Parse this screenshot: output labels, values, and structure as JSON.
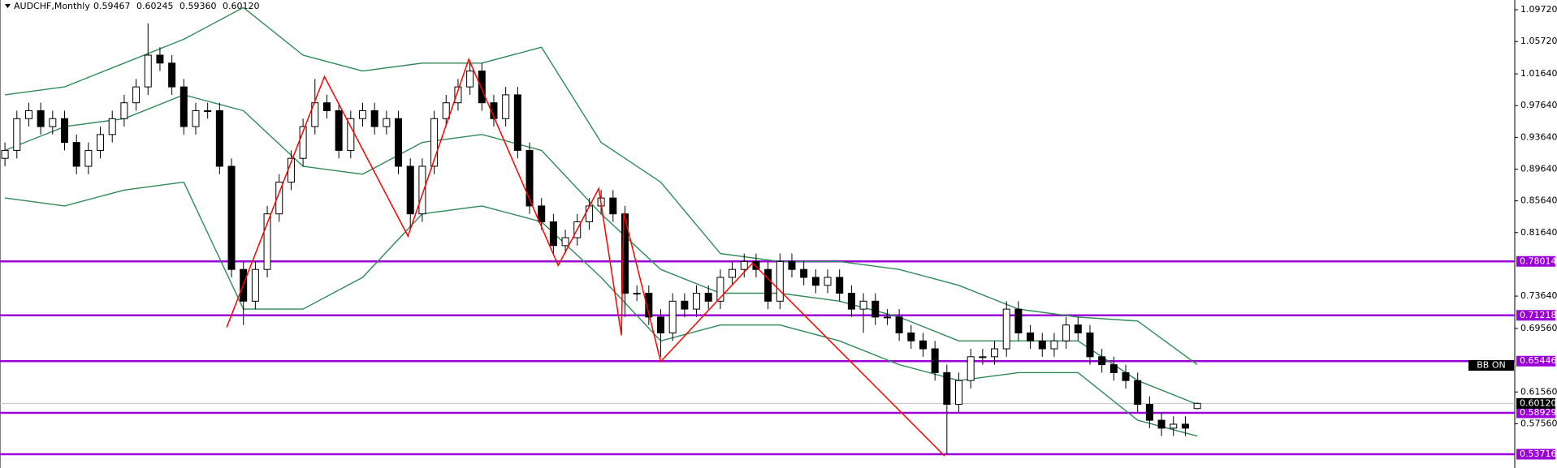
{
  "chart_data": {
    "type": "candlestick",
    "title": "AUDCHF,Monthly",
    "quote": [
      "0.59467",
      "0.60245",
      "0.59360",
      "0.60120"
    ],
    "indicator_label": "BB ON",
    "ylim": [
      0.5198,
      1.1095
    ],
    "yticks": [
      {
        "value": 1.0972,
        "label": "1.09720"
      },
      {
        "value": 1.0572,
        "label": "1.05720"
      },
      {
        "value": 1.0164,
        "label": "1.01640"
      },
      {
        "value": 0.9764,
        "label": "0.97640"
      },
      {
        "value": 0.9364,
        "label": "0.93640"
      },
      {
        "value": 0.8964,
        "label": "0.89640"
      },
      {
        "value": 0.8564,
        "label": "0.85640"
      },
      {
        "value": 0.8164,
        "label": "0.81640"
      },
      {
        "value": 0.7364,
        "label": "0.73640"
      },
      {
        "value": 0.6956,
        "label": "0.69560"
      },
      {
        "value": 0.6156,
        "label": "0.61560"
      },
      {
        "value": 0.5756,
        "label": "0.57560"
      }
    ],
    "levels": {
      "color": "#9b00d9",
      "values": [
        0.78014,
        0.71218,
        0.65446,
        0.58929,
        0.53716
      ]
    },
    "price_line": {
      "value": 0.6012,
      "label": "0.60120",
      "color": "#c0c0c0"
    },
    "candle_colors": {
      "up": "#ffffff",
      "down": "#000000",
      "outline": "#000000"
    },
    "open": [
      0.91,
      0.92,
      0.96,
      0.97,
      0.95,
      0.96,
      0.93,
      0.9,
      0.92,
      0.94,
      0.96,
      0.98,
      1.0,
      1.04,
      1.03,
      1.0,
      0.95,
      0.97,
      0.97,
      0.9,
      0.77,
      0.73,
      0.77,
      0.84,
      0.88,
      0.91,
      0.95,
      0.98,
      0.97,
      0.92,
      0.96,
      0.97,
      0.95,
      0.96,
      0.9,
      0.84,
      0.9,
      0.96,
      0.98,
      1.0,
      1.02,
      0.98,
      0.96,
      0.99,
      0.92,
      0.85,
      0.83,
      0.8,
      0.81,
      0.83,
      0.85,
      0.86,
      0.84,
      0.74,
      0.74,
      0.71,
      0.69,
      0.73,
      0.72,
      0.74,
      0.73,
      0.76,
      0.77,
      0.78,
      0.77,
      0.73,
      0.78,
      0.77,
      0.76,
      0.75,
      0.76,
      0.74,
      0.72,
      0.73,
      0.71,
      0.71,
      0.69,
      0.68,
      0.67,
      0.64,
      0.6,
      0.63,
      0.66,
      0.66,
      0.67,
      0.72,
      0.69,
      0.68,
      0.67,
      0.68,
      0.7,
      0.69,
      0.66,
      0.65,
      0.64,
      0.63,
      0.6,
      0.58,
      0.57,
      0.575,
      0.59467
    ],
    "high": [
      0.93,
      0.97,
      0.98,
      0.98,
      0.97,
      0.97,
      0.94,
      0.93,
      0.95,
      0.97,
      0.99,
      1.01,
      1.08,
      1.05,
      1.04,
      1.01,
      0.98,
      0.98,
      0.98,
      0.91,
      0.78,
      0.78,
      0.85,
      0.89,
      0.92,
      0.96,
      1.01,
      0.99,
      0.98,
      0.97,
      0.98,
      0.98,
      0.97,
      0.97,
      0.91,
      0.91,
      0.97,
      0.99,
      1.01,
      1.03,
      1.03,
      0.99,
      1.0,
      1.0,
      0.93,
      0.86,
      0.84,
      0.82,
      0.84,
      0.86,
      0.87,
      0.87,
      0.85,
      0.75,
      0.75,
      0.72,
      0.74,
      0.74,
      0.75,
      0.75,
      0.77,
      0.78,
      0.79,
      0.79,
      0.78,
      0.79,
      0.79,
      0.78,
      0.77,
      0.77,
      0.77,
      0.75,
      0.74,
      0.74,
      0.72,
      0.72,
      0.7,
      0.69,
      0.68,
      0.65,
      0.64,
      0.67,
      0.67,
      0.68,
      0.73,
      0.73,
      0.7,
      0.69,
      0.69,
      0.71,
      0.71,
      0.7,
      0.67,
      0.66,
      0.65,
      0.64,
      0.61,
      0.59,
      0.585,
      0.585,
      0.60245
    ],
    "low": [
      0.9,
      0.91,
      0.95,
      0.94,
      0.94,
      0.92,
      0.89,
      0.89,
      0.91,
      0.93,
      0.95,
      0.97,
      0.99,
      1.02,
      0.99,
      0.94,
      0.94,
      0.96,
      0.89,
      0.76,
      0.7,
      0.72,
      0.76,
      0.83,
      0.87,
      0.9,
      0.94,
      0.96,
      0.91,
      0.91,
      0.95,
      0.94,
      0.94,
      0.89,
      0.82,
      0.83,
      0.89,
      0.95,
      0.97,
      0.99,
      0.97,
      0.95,
      0.95,
      0.91,
      0.84,
      0.82,
      0.79,
      0.79,
      0.8,
      0.82,
      0.84,
      0.83,
      0.71,
      0.73,
      0.7,
      0.66,
      0.68,
      0.71,
      0.71,
      0.72,
      0.72,
      0.75,
      0.76,
      0.76,
      0.72,
      0.72,
      0.76,
      0.75,
      0.74,
      0.74,
      0.73,
      0.71,
      0.69,
      0.7,
      0.7,
      0.68,
      0.67,
      0.66,
      0.63,
      0.537,
      0.59,
      0.62,
      0.65,
      0.65,
      0.66,
      0.68,
      0.67,
      0.66,
      0.66,
      0.67,
      0.68,
      0.65,
      0.64,
      0.63,
      0.62,
      0.59,
      0.57,
      0.56,
      0.56,
      0.56,
      0.5936
    ],
    "close": [
      0.92,
      0.96,
      0.97,
      0.95,
      0.96,
      0.93,
      0.9,
      0.92,
      0.94,
      0.96,
      0.98,
      1.0,
      1.04,
      1.03,
      1.0,
      0.95,
      0.97,
      0.97,
      0.9,
      0.77,
      0.73,
      0.77,
      0.84,
      0.88,
      0.91,
      0.95,
      0.98,
      0.97,
      0.92,
      0.96,
      0.97,
      0.95,
      0.96,
      0.9,
      0.84,
      0.9,
      0.96,
      0.98,
      1.0,
      1.02,
      0.98,
      0.96,
      0.99,
      0.92,
      0.85,
      0.83,
      0.8,
      0.81,
      0.83,
      0.85,
      0.86,
      0.84,
      0.74,
      0.74,
      0.71,
      0.69,
      0.73,
      0.72,
      0.74,
      0.73,
      0.76,
      0.77,
      0.78,
      0.77,
      0.73,
      0.78,
      0.77,
      0.76,
      0.75,
      0.76,
      0.74,
      0.72,
      0.73,
      0.71,
      0.71,
      0.69,
      0.68,
      0.67,
      0.64,
      0.6,
      0.63,
      0.66,
      0.66,
      0.67,
      0.72,
      0.69,
      0.68,
      0.67,
      0.68,
      0.7,
      0.69,
      0.66,
      0.65,
      0.64,
      0.63,
      0.6,
      0.58,
      0.57,
      0.575,
      0.57,
      0.6012
    ],
    "bands": {
      "color": "#2e8b57",
      "x": [
        0,
        5,
        10,
        15,
        20,
        25,
        30,
        35,
        40,
        45,
        50,
        55,
        60,
        65,
        70,
        75,
        80,
        85,
        90,
        95,
        100
      ],
      "upper": [
        0.99,
        1.0,
        1.03,
        1.06,
        1.1,
        1.04,
        1.02,
        1.03,
        1.03,
        1.05,
        0.93,
        0.88,
        0.79,
        0.78,
        0.78,
        0.77,
        0.75,
        0.72,
        0.71,
        0.705,
        0.65
      ],
      "middle": [
        0.92,
        0.95,
        0.96,
        0.99,
        0.97,
        0.9,
        0.89,
        0.93,
        0.94,
        0.92,
        0.84,
        0.77,
        0.74,
        0.74,
        0.73,
        0.71,
        0.68,
        0.68,
        0.68,
        0.63,
        0.6
      ],
      "lower": [
        0.86,
        0.85,
        0.87,
        0.88,
        0.72,
        0.72,
        0.76,
        0.84,
        0.85,
        0.83,
        0.76,
        0.68,
        0.7,
        0.7,
        0.68,
        0.65,
        0.63,
        0.64,
        0.64,
        0.58,
        0.56
      ]
    },
    "zigzag": {
      "color": "#ff0000",
      "x": [
        18.6,
        26.8,
        33.8,
        38.9,
        46.4,
        49.8,
        51.7,
        51.9,
        55,
        62.7,
        78.8
      ],
      "y": [
        0.697,
        1.013,
        0.812,
        1.035,
        0.775,
        0.872,
        0.687,
        0.841,
        0.654,
        0.778,
        0.535
      ]
    }
  }
}
